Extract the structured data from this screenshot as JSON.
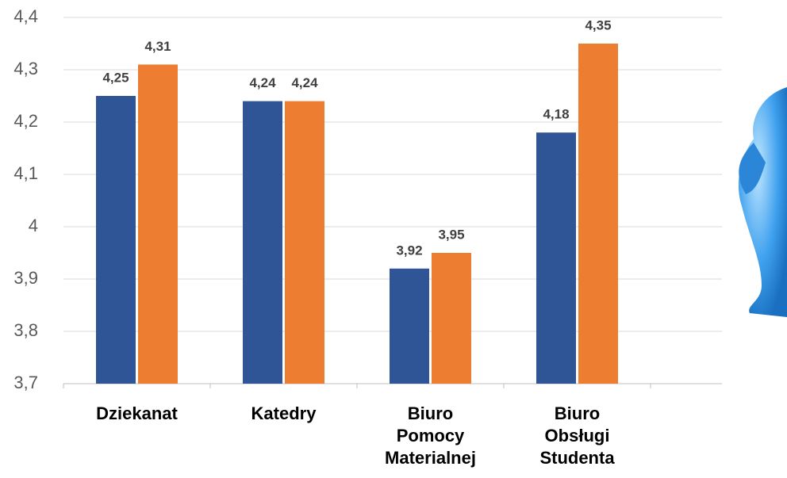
{
  "chart_data": {
    "type": "bar",
    "categories": [
      "Dziekanat",
      "Katedry",
      "Biuro Pomocy Materialnej",
      "Biuro Obsługi Studenta"
    ],
    "series": [
      {
        "color": "#2f5597",
        "values": [
          4.25,
          4.24,
          3.92,
          4.18
        ],
        "value_labels": [
          "4,25",
          "4,24",
          "3,92",
          "4,18"
        ]
      },
      {
        "color": "#ed7d31",
        "values": [
          4.31,
          4.24,
          3.95,
          4.35
        ],
        "value_labels": [
          "4,31",
          "4,24",
          "3,95",
          "4,35"
        ]
      }
    ],
    "ylim": [
      3.7,
      4.4
    ],
    "yticks": [
      {
        "value": 3.7,
        "label": "3,7"
      },
      {
        "value": 3.8,
        "label": "3,8"
      },
      {
        "value": 3.9,
        "label": "3,9"
      },
      4,
      {
        "value": 4.1,
        "label": "4,1"
      },
      {
        "value": 4.2,
        "label": "4,2"
      },
      {
        "value": 4.3,
        "label": "4,3"
      },
      {
        "value": 4.4,
        "label": "4,4"
      }
    ],
    "grid": true
  }
}
